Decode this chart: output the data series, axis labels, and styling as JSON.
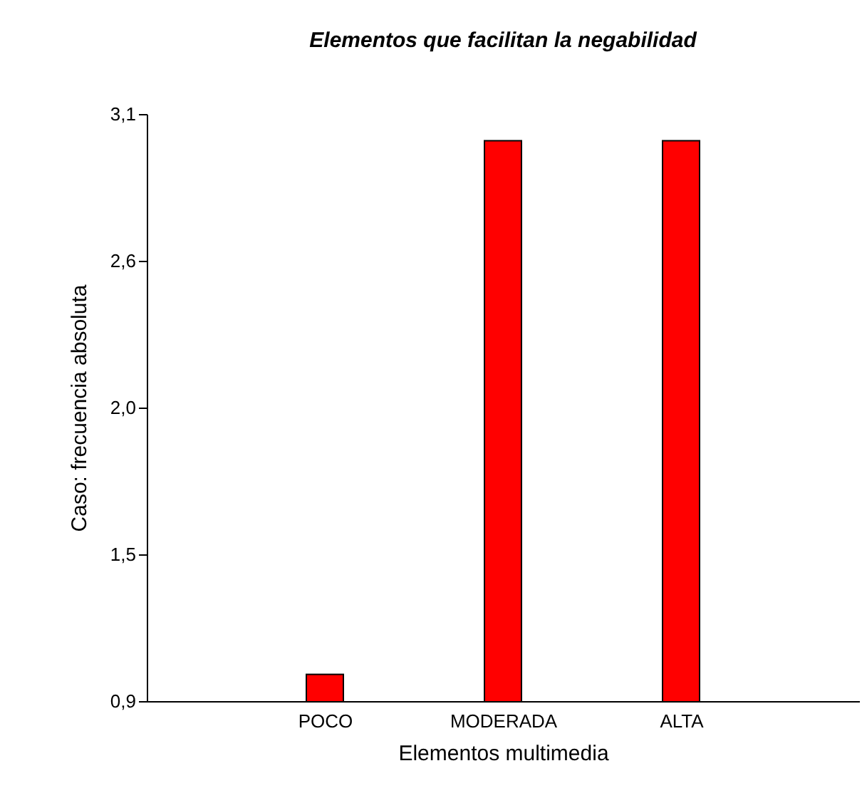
{
  "chart_data": {
    "type": "bar",
    "title": "Elementos que facilitan la negabilidad",
    "xlabel": "Elementos multimedia",
    "ylabel": "Caso: frecuencia absoluta",
    "categories": [
      "POCO",
      "MODERADA",
      "ALTA"
    ],
    "values": [
      1,
      3,
      3
    ],
    "color": "#ff0000",
    "ylim": [
      0.9,
      3.1
    ],
    "yticks": [
      {
        "value": 0.9,
        "label": "0,9"
      },
      {
        "value": 1.45,
        "label": "1,5"
      },
      {
        "value": 2.0,
        "label": "2,0"
      },
      {
        "value": 2.55,
        "label": "2,6"
      },
      {
        "value": 3.1,
        "label": "3,1"
      }
    ],
    "grid": false
  }
}
